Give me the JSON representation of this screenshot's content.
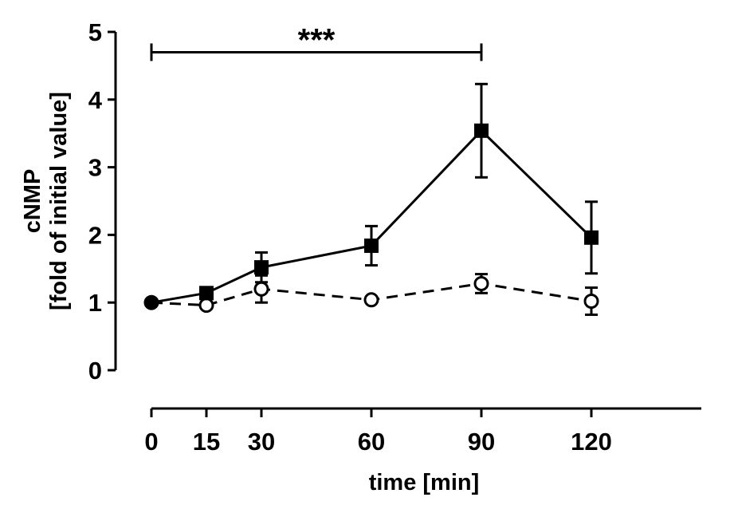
{
  "chart_data": {
    "type": "line",
    "xlabel": "time [min]",
    "ylabel_line1": "cNMP",
    "ylabel_line2": "[fold of initial value]",
    "xlim": [
      0,
      150
    ],
    "ylim": [
      0,
      5
    ],
    "x_ticks": [
      0,
      15,
      30,
      60,
      90,
      120
    ],
    "y_ticks": [
      0,
      1,
      2,
      3,
      4,
      5
    ],
    "grid": false,
    "series": [
      {
        "marker": "filled-square",
        "line": "solid",
        "x": [
          0,
          15,
          30,
          60,
          90,
          120
        ],
        "y": [
          1.0,
          1.14,
          1.52,
          1.84,
          3.54,
          1.96
        ],
        "err": [
          0.03,
          0.05,
          0.22,
          0.29,
          0.69,
          0.53
        ]
      },
      {
        "marker": "open-circle",
        "line": "dashed",
        "x": [
          0,
          15,
          30,
          60,
          90,
          120
        ],
        "y": [
          1.0,
          0.96,
          1.2,
          1.04,
          1.28,
          1.02
        ],
        "err": [
          0.03,
          0.03,
          0.2,
          0.05,
          0.14,
          0.2
        ]
      }
    ],
    "annotations": [
      {
        "type": "significance-bracket",
        "x_from": 0,
        "x_to": 90,
        "y": 4.7,
        "text": "***"
      }
    ]
  }
}
